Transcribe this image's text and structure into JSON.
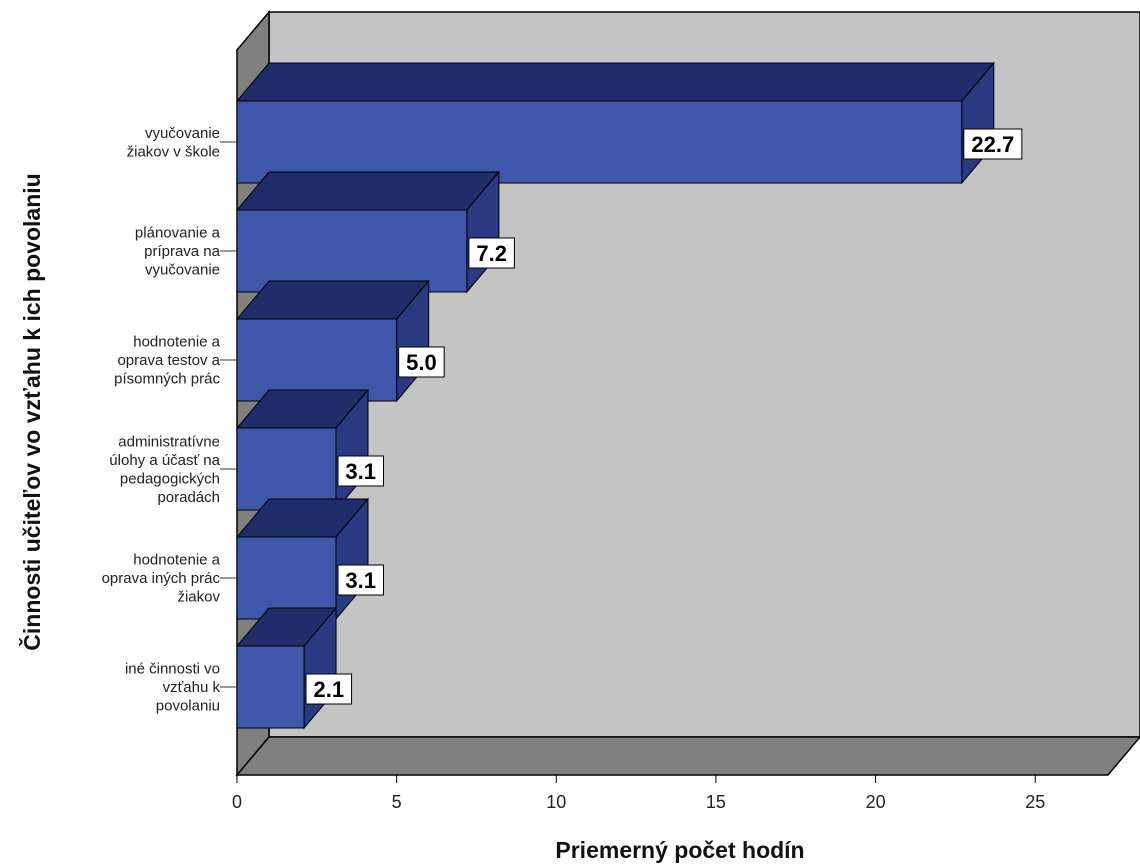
{
  "chart_data": {
    "type": "bar",
    "orientation": "horizontal",
    "three_d": true,
    "categories": [
      [
        "vyučovanie",
        "žiakov v škole"
      ],
      [
        "plánovanie a",
        "príprava na",
        "vyučovanie"
      ],
      [
        "hodnotenie a",
        "oprava testov a",
        "písomných prác"
      ],
      [
        "administratívne",
        "úlohy a účasť na",
        "pedagogických",
        "poradách"
      ],
      [
        "hodnotenie a",
        "oprava iných prác",
        "žiakov"
      ],
      [
        "iné činnosti vo",
        "vzťahu k",
        "povolaniu"
      ]
    ],
    "values": [
      22.7,
      7.2,
      5.0,
      3.1,
      3.1,
      2.1
    ],
    "value_labels": [
      "22.7",
      "7.2",
      "5.0",
      "3.1",
      "3.1",
      "2.1"
    ],
    "xlabel": "Priemerný počet hodín",
    "ylabel": "Činnosti učiteľov vo vzťahu k ich povolaniu",
    "xlim": [
      0,
      28
    ],
    "xticks": [
      0,
      5,
      10,
      15,
      20,
      25
    ],
    "grid": false,
    "legend": "none",
    "colors": {
      "bar_front": "#3f57aa",
      "bar_top": "#1f2d6a",
      "bar_side": "#2a3a80",
      "back_wall": "#c4c4c4",
      "side_wall": "#808080",
      "floor": "#808080"
    }
  }
}
